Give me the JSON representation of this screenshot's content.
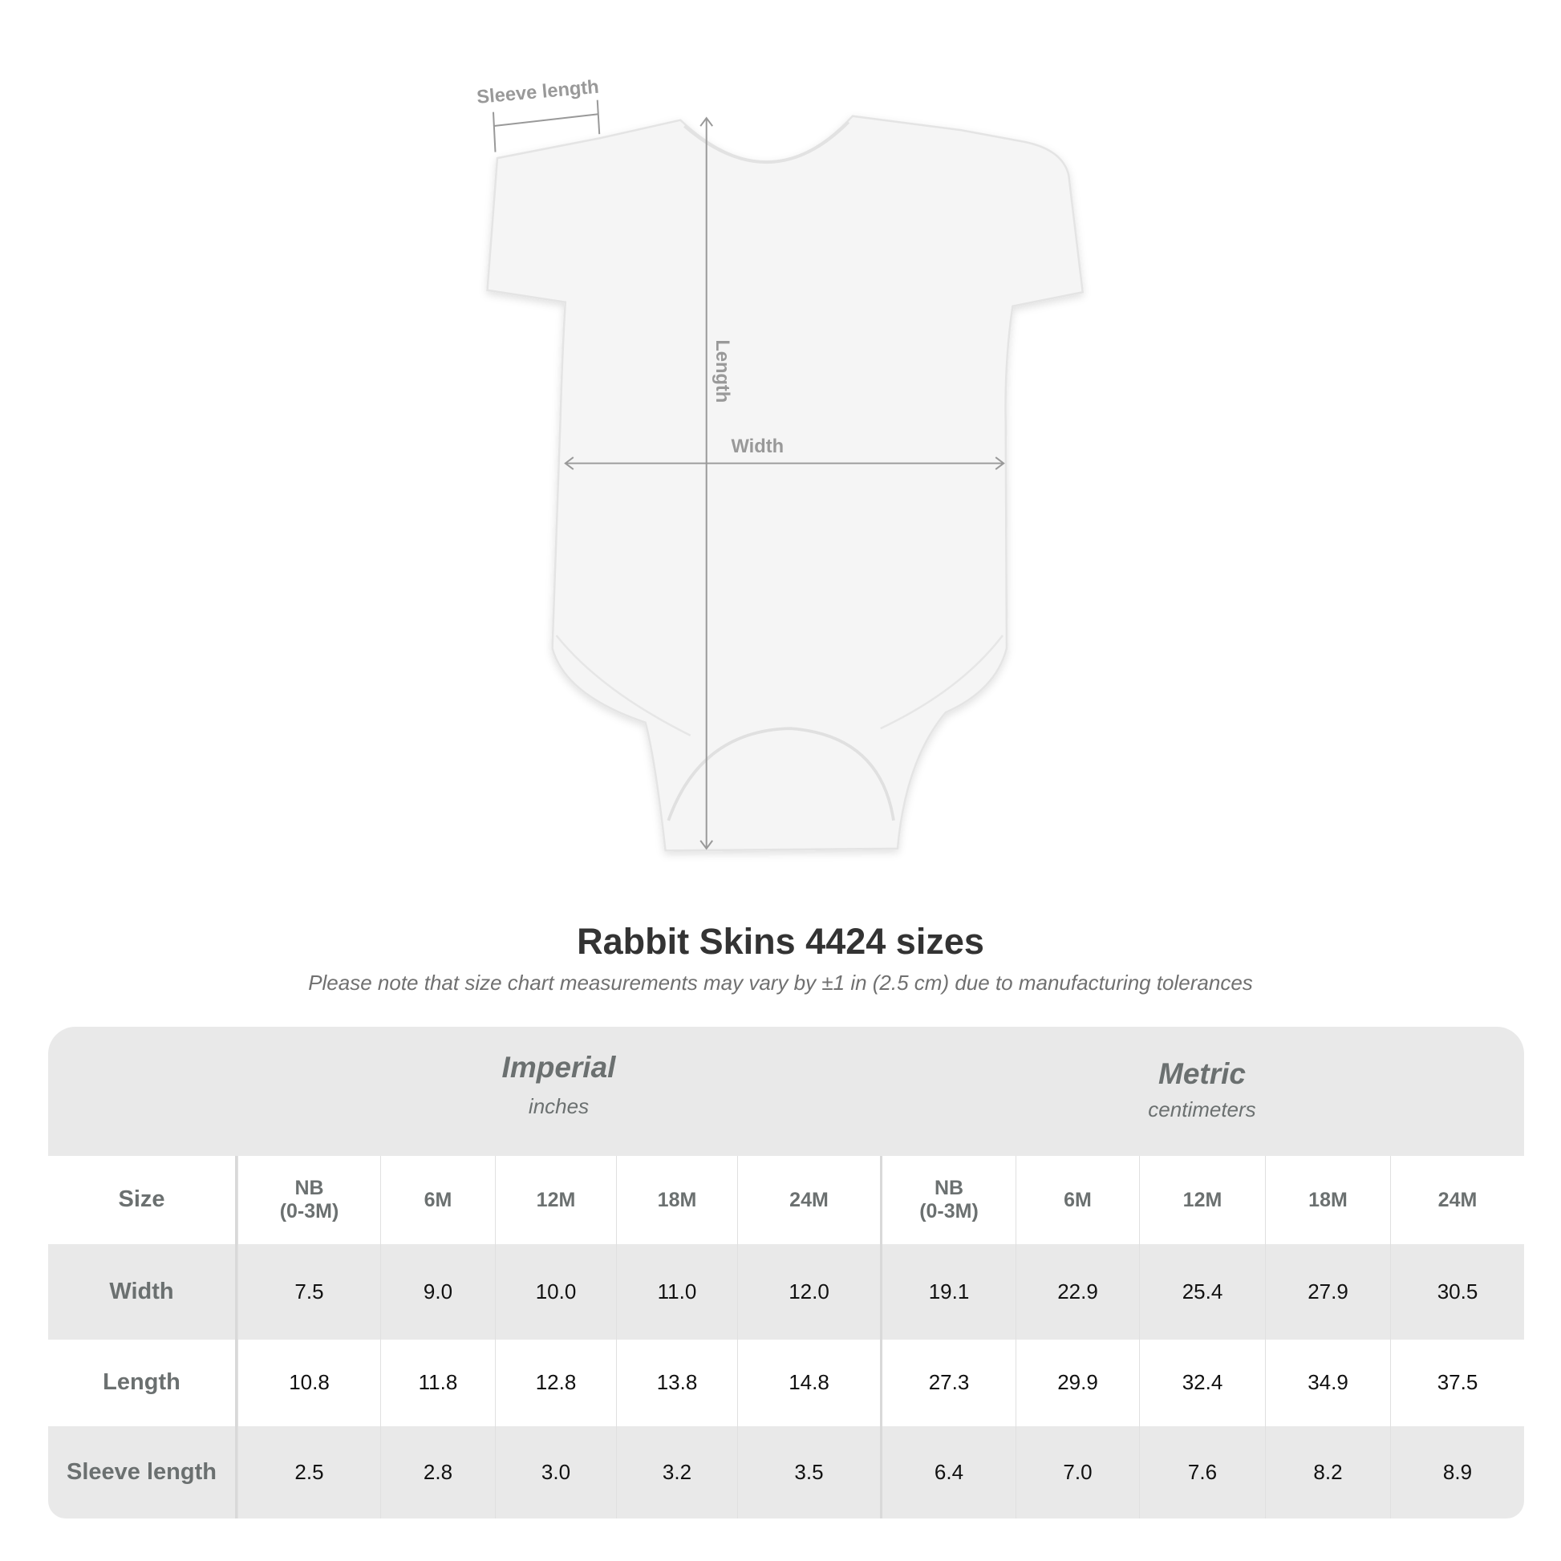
{
  "diagram": {
    "labels": {
      "sleeve": "Sleeve length",
      "length": "Length",
      "width": "Width"
    },
    "colors": {
      "garment": "#f4f4f4",
      "measure": "#999999"
    }
  },
  "header": {
    "title": "Rabbit Skins 4424 sizes",
    "note": "Please note that size chart measurements may vary by ±1 in (2.5 cm) due to manufacturing tolerances"
  },
  "table": {
    "imperial": {
      "name": "Imperial",
      "unit": "inches"
    },
    "metric": {
      "name": "Metric",
      "unit": "centimeters"
    },
    "size_label": "Size",
    "sizes": [
      "NB\n(0-3M)",
      "6M",
      "12M",
      "18M",
      "24M"
    ],
    "rows": [
      {
        "label": "Width",
        "imperial": [
          "7.5",
          "9.0",
          "10.0",
          "11.0",
          "12.0"
        ],
        "metric": [
          "19.1",
          "22.9",
          "25.4",
          "27.9",
          "30.5"
        ]
      },
      {
        "label": "Length",
        "imperial": [
          "10.8",
          "11.8",
          "12.8",
          "13.8",
          "14.8"
        ],
        "metric": [
          "27.3",
          "29.9",
          "32.4",
          "34.9",
          "37.5"
        ]
      },
      {
        "label": "Sleeve length",
        "imperial": [
          "2.5",
          "2.8",
          "3.0",
          "3.2",
          "3.5"
        ],
        "metric": [
          "6.4",
          "7.0",
          "7.6",
          "8.2",
          "8.9"
        ]
      }
    ]
  }
}
